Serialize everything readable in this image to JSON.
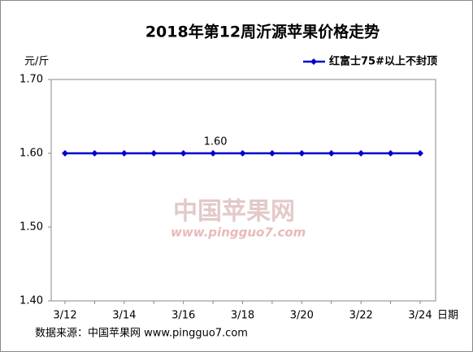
{
  "chart_data": {
    "type": "line",
    "title": "2018年第12周沂源苹果价格走势",
    "y_label": "元/斤",
    "x_label": "日期",
    "source": "数据来源：中国苹果网 www.pingguo7.com",
    "watermark": "中国苹果网",
    "watermark_url": "www.pingguo7.com",
    "categories": [
      "3/12",
      null,
      "3/14",
      null,
      "3/16",
      null,
      "3/18",
      null,
      "3/20",
      null,
      "3/22",
      null,
      "3/24"
    ],
    "series": [
      {
        "name": "红富士75#以上不封顶",
        "color": "#0000cc",
        "values": [
          1.6,
          1.6,
          1.6,
          1.6,
          1.6,
          1.6,
          1.6,
          1.6,
          1.6,
          1.6,
          1.6,
          1.6,
          1.6
        ],
        "value_labels": [
          null,
          null,
          null,
          null,
          null,
          "1.60",
          null,
          null,
          null,
          null,
          null,
          null,
          null
        ]
      }
    ],
    "ylim": [
      1.4,
      1.7
    ],
    "yticks": [
      {
        "value": 1.4,
        "label": "1.40"
      },
      {
        "value": 1.5,
        "label": "1.50"
      },
      {
        "value": 1.6,
        "label": "1.60"
      },
      {
        "value": 1.7,
        "label": "1.70"
      }
    ],
    "legend": "top-right"
  }
}
